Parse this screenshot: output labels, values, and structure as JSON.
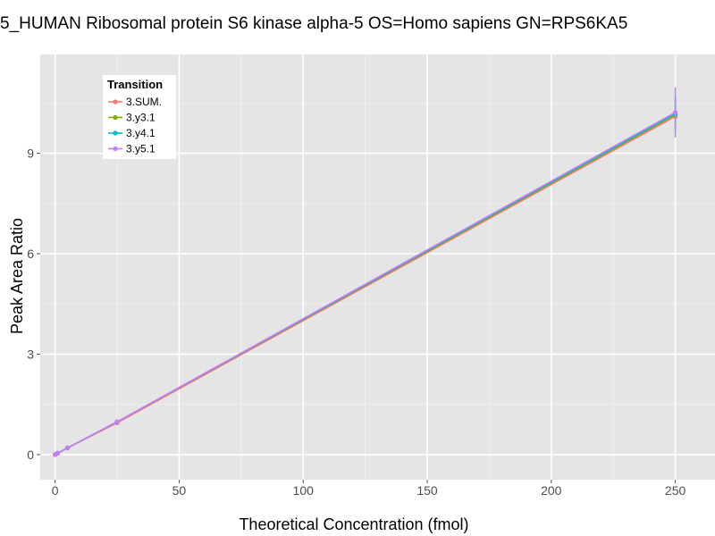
{
  "chart_data": {
    "type": "line",
    "title": "5_HUMAN Ribosomal protein S6 kinase alpha-5 OS=Homo sapiens GN=RPS6KA5",
    "xlabel": "Theoretical Concentration (fmol)",
    "ylabel": "Peak Area Ratio",
    "xlim": [
      -6,
      266
    ],
    "ylim": [
      -0.75,
      11.95
    ],
    "x_ticks": [
      0,
      50,
      100,
      150,
      200,
      250
    ],
    "y_ticks": [
      0,
      3,
      6,
      9
    ],
    "legend": {
      "title": "Transition",
      "position": "top-left"
    },
    "series": [
      {
        "name": "3.SUM.",
        "color": "#F8766D",
        "x": [
          0,
          1,
          5,
          25,
          250
        ],
        "y": [
          0.0,
          0.04,
          0.2,
          0.95,
          10.1
        ],
        "error": [
          0,
          0,
          0,
          0,
          0.1
        ]
      },
      {
        "name": "3.y3.1",
        "color": "#7CAE00",
        "x": [
          0,
          1,
          5,
          25,
          250
        ],
        "y": [
          0.0,
          0.04,
          0.2,
          0.98,
          10.15
        ],
        "error": [
          0,
          0,
          0,
          0,
          0.35
        ]
      },
      {
        "name": "3.y4.1",
        "color": "#00BFC4",
        "x": [
          0,
          1,
          5,
          25,
          250
        ],
        "y": [
          0.0,
          0.04,
          0.2,
          0.98,
          10.18
        ],
        "error": [
          0,
          0,
          0,
          0,
          0.5
        ]
      },
      {
        "name": "3.y5.1",
        "color": "#C77CFF",
        "x": [
          0,
          1,
          5,
          25,
          250
        ],
        "y": [
          0.0,
          0.04,
          0.2,
          0.98,
          10.22
        ],
        "error": [
          0,
          0,
          0,
          0,
          0.75
        ]
      }
    ]
  }
}
